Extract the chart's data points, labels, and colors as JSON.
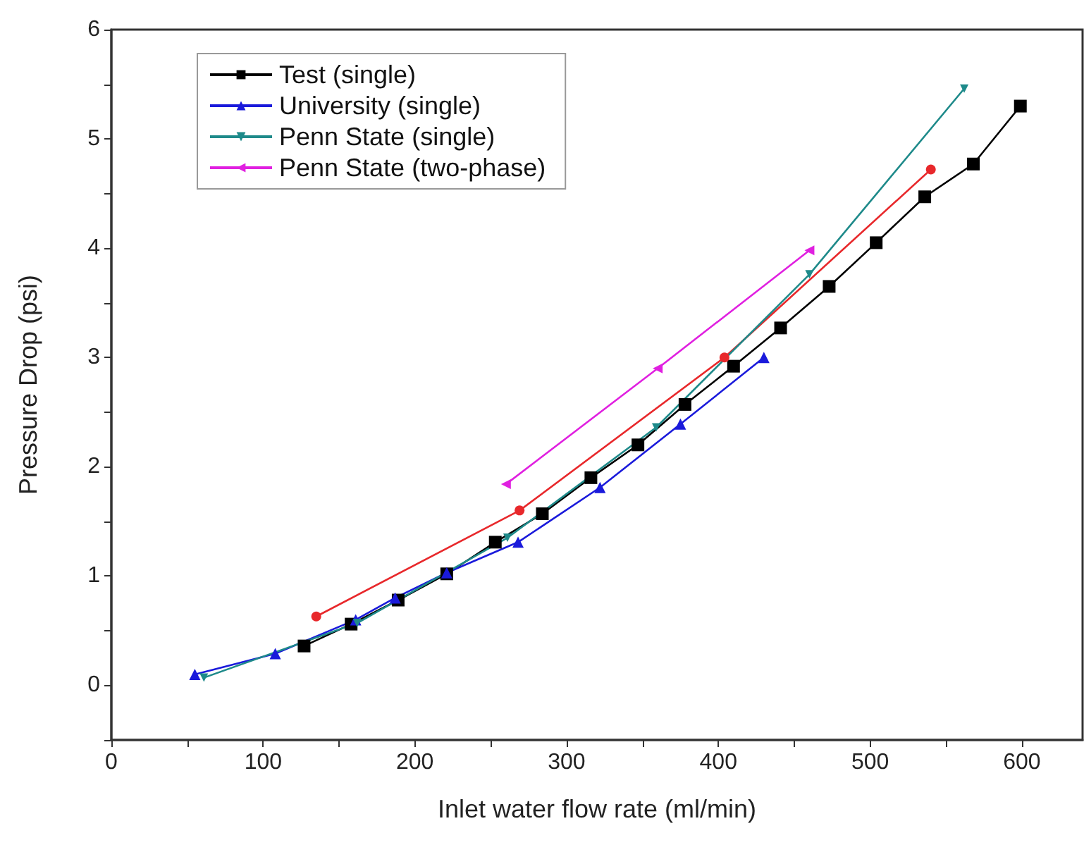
{
  "chart_data": {
    "type": "line",
    "xlabel": "Inlet water flow rate (ml/min)",
    "ylabel": "Pressure Drop (psi)",
    "xlim": [
      0,
      640
    ],
    "xticks": [
      0,
      {
        "value": 50,
        "label": null
      },
      100,
      {
        "value": 150,
        "label": null
      },
      200,
      {
        "value": 250,
        "label": null
      },
      300,
      {
        "value": 350,
        "label": null
      },
      400,
      {
        "value": 450,
        "label": null
      },
      500,
      {
        "value": 550,
        "label": null
      },
      600
    ],
    "ylim": [
      -0.5,
      6
    ],
    "yticks": [
      {
        "value": -0.5,
        "label": null
      },
      0,
      {
        "value": 0.5,
        "label": null
      },
      1,
      {
        "value": 1.5,
        "label": null
      },
      2,
      {
        "value": 2.5,
        "label": null
      },
      3,
      {
        "value": 3.5,
        "label": null
      },
      4,
      {
        "value": 4.5,
        "label": null
      },
      5,
      {
        "value": 5.5,
        "label": null
      },
      6
    ],
    "grid": false,
    "legend": "top left",
    "line_style": "solid",
    "series": [
      {
        "name": "Test (single)",
        "color": "#000000",
        "marker": "square",
        "x": [
          127,
          158,
          189,
          221,
          253,
          284,
          316,
          347,
          378,
          410,
          441,
          473,
          504,
          536,
          568,
          599
        ],
        "values": [
          0.36,
          0.56,
          0.78,
          1.02,
          1.31,
          1.57,
          1.9,
          2.2,
          2.57,
          2.92,
          3.27,
          3.65,
          4.05,
          4.47,
          4.77,
          5.3
        ]
      },
      {
        "color": "#e8282b",
        "marker": "circle",
        "x": [
          135,
          269,
          404,
          540
        ],
        "values": [
          0.63,
          1.6,
          3.0,
          4.72
        ]
      },
      {
        "name": "University (single)",
        "color": "#1a1adb",
        "marker": "triangle",
        "x": [
          55,
          108,
          161,
          187,
          221,
          268,
          322,
          375,
          430
        ],
        "values": [
          0.1,
          0.29,
          0.6,
          0.8,
          1.03,
          1.31,
          1.81,
          2.39,
          3.0
        ]
      },
      {
        "name": "Penn State (single)",
        "color": "#1e8a8a",
        "marker": "triangle-down",
        "x": [
          61,
          162,
          261,
          359,
          460,
          562
        ],
        "values": [
          0.07,
          0.57,
          1.35,
          2.36,
          3.76,
          5.46
        ]
      },
      {
        "name": "Penn State (two-phase)",
        "color": "#e020e0",
        "marker": "triangle-left",
        "x": [
          260,
          360,
          460
        ],
        "values": [
          1.84,
          2.9,
          3.98
        ]
      }
    ]
  }
}
